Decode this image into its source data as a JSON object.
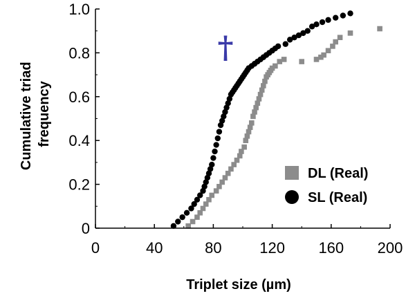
{
  "chart_data": {
    "type": "scatter",
    "xlabel": "Triplet size (µm)",
    "ylabel_lines": [
      "Cumulative triad",
      "frequency"
    ],
    "xlim": [
      0,
      200
    ],
    "ylim": [
      0,
      1.0
    ],
    "x_ticks": [
      0,
      40,
      80,
      120,
      160,
      200
    ],
    "y_ticks": [
      0,
      0.2,
      0.4,
      0.6,
      0.8,
      1.0
    ],
    "x_tick_labels": [
      "0",
      "40",
      "80",
      "120",
      "160",
      "200"
    ],
    "y_tick_labels": [
      "0",
      "0.2",
      "0.4",
      "0.6",
      "0.8",
      "1.0"
    ],
    "legend_position": "right",
    "significance_marker": "†",
    "significance_marker_color": "#3a3aa8",
    "series": [
      {
        "name": "DL (Real)",
        "marker": "square",
        "color": "#8c8c8c",
        "x": [
          63,
          66,
          69,
          71,
          73,
          75,
          77,
          79,
          82,
          84,
          86,
          88,
          90,
          92,
          94,
          96,
          98,
          99,
          101,
          102,
          103,
          104,
          105,
          106,
          107,
          108,
          109,
          110,
          111,
          112,
          113,
          114,
          115,
          116,
          117,
          118,
          119,
          120,
          122,
          125,
          128,
          140,
          150,
          153,
          155,
          158,
          161,
          163,
          166,
          173,
          193
        ],
        "y": [
          0.01,
          0.03,
          0.05,
          0.07,
          0.09,
          0.11,
          0.13,
          0.15,
          0.17,
          0.19,
          0.21,
          0.23,
          0.25,
          0.27,
          0.29,
          0.31,
          0.33,
          0.35,
          0.37,
          0.4,
          0.42,
          0.44,
          0.46,
          0.48,
          0.51,
          0.53,
          0.55,
          0.57,
          0.59,
          0.61,
          0.63,
          0.65,
          0.67,
          0.69,
          0.7,
          0.71,
          0.72,
          0.73,
          0.74,
          0.76,
          0.77,
          0.76,
          0.77,
          0.78,
          0.79,
          0.81,
          0.83,
          0.85,
          0.87,
          0.89,
          0.91
        ]
      },
      {
        "name": "SL (Real)",
        "marker": "circle",
        "color": "#000000",
        "x": [
          53,
          56,
          59,
          62,
          65,
          67,
          69,
          71,
          73,
          74,
          75,
          76,
          77,
          78,
          79,
          80,
          81,
          82,
          83,
          84,
          85,
          86,
          87,
          88,
          89,
          90,
          91,
          92,
          93,
          94,
          95,
          96,
          97,
          98,
          99,
          100,
          101,
          102,
          103,
          104,
          106,
          108,
          110,
          112,
          114,
          116,
          118,
          120,
          122,
          124,
          129,
          132,
          135,
          138,
          141,
          144,
          147,
          150,
          154,
          158,
          163,
          168,
          173
        ],
        "y": [
          0.01,
          0.03,
          0.05,
          0.07,
          0.09,
          0.11,
          0.13,
          0.15,
          0.17,
          0.19,
          0.21,
          0.23,
          0.25,
          0.27,
          0.29,
          0.32,
          0.35,
          0.38,
          0.41,
          0.44,
          0.47,
          0.49,
          0.51,
          0.53,
          0.55,
          0.57,
          0.59,
          0.61,
          0.62,
          0.63,
          0.64,
          0.65,
          0.66,
          0.67,
          0.68,
          0.69,
          0.7,
          0.71,
          0.72,
          0.73,
          0.74,
          0.75,
          0.76,
          0.77,
          0.78,
          0.79,
          0.8,
          0.81,
          0.82,
          0.83,
          0.84,
          0.86,
          0.87,
          0.88,
          0.89,
          0.9,
          0.92,
          0.93,
          0.94,
          0.95,
          0.96,
          0.97,
          0.98
        ]
      }
    ]
  }
}
